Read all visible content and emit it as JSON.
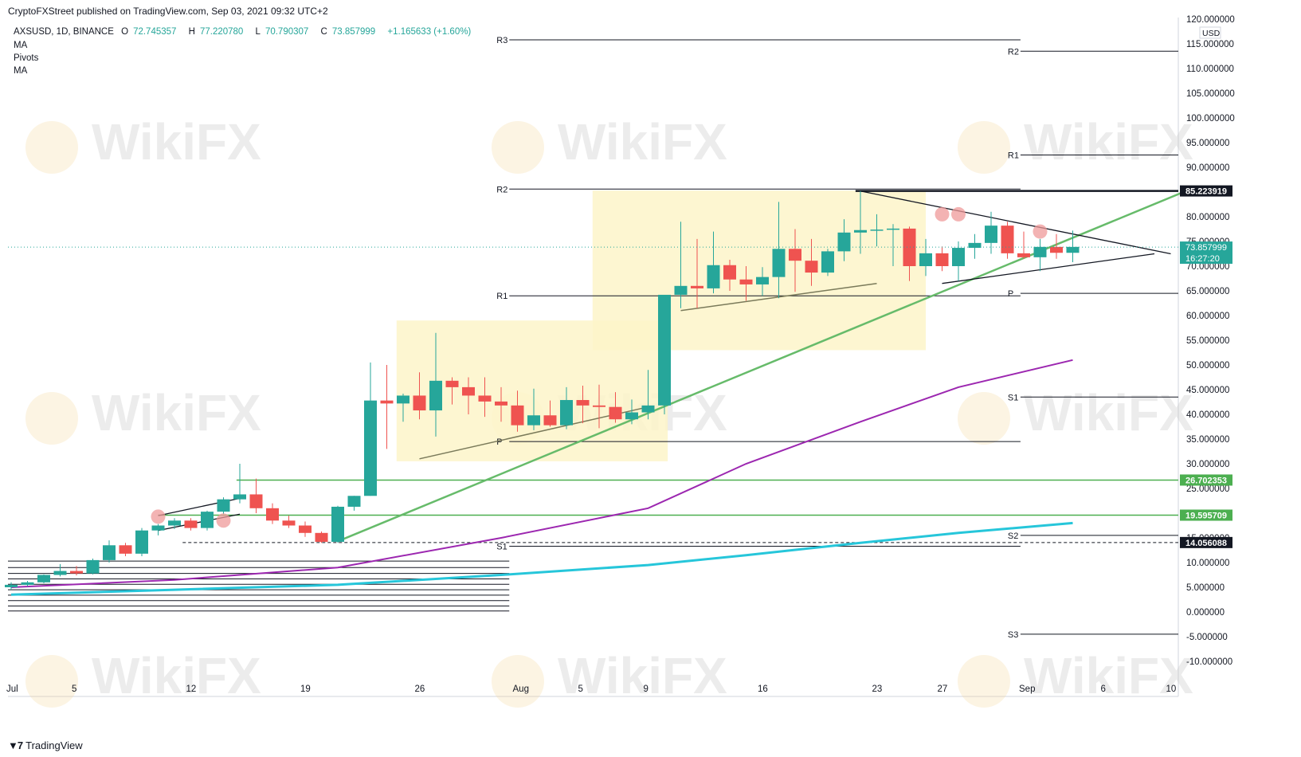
{
  "header": {
    "published": "CryptoFXStreet published on TradingView.com, Sep 03, 2021 09:32 UTC+2",
    "symbol": "AXSUSD, 1D, BINANCE",
    "open_label": "O",
    "open": "72.745357",
    "high_label": "H",
    "high": "77.220780",
    "low_label": "L",
    "low": "70.790307",
    "close_label": "C",
    "close": "73.857999",
    "change": "+1.165633 (+1.60%)",
    "indicators": [
      "MA",
      "Pivots",
      "MA"
    ]
  },
  "footer": {
    "brand": "TradingView"
  },
  "watermark": "WikiFX",
  "colors": {
    "up": "#26a69a",
    "down": "#ef5350",
    "ma_slow": "#9c27b0",
    "ma_long": "#26c6da",
    "trend": "#66bb6a",
    "highlight": "#fdf5c9"
  },
  "chart_data": {
    "type": "candlestick",
    "title": "AXSUSD, 1D, BINANCE",
    "currency": "USD",
    "ylim": [
      -10,
      120
    ],
    "y_ticks": [
      "120.000000",
      "115.000000",
      "110.000000",
      "105.000000",
      "100.000000",
      "95.000000",
      "90.000000",
      "85.000000",
      "80.000000",
      "75.000000",
      "70.000000",
      "65.000000",
      "60.000000",
      "55.000000",
      "50.000000",
      "45.000000",
      "40.000000",
      "35.000000",
      "30.000000",
      "25.000000",
      "20.000000",
      "15.000000",
      "10.000000",
      "5.000000",
      "0.000000",
      "-5.000000",
      "-10.000000"
    ],
    "x_ticks": [
      {
        "label": "Jul",
        "day": 0
      },
      {
        "label": "5",
        "day": 4
      },
      {
        "label": "12",
        "day": 11
      },
      {
        "label": "19",
        "day": 18
      },
      {
        "label": "26",
        "day": 25
      },
      {
        "label": "Aug",
        "day": 31
      },
      {
        "label": "5",
        "day": 35
      },
      {
        "label": "9",
        "day": 39
      },
      {
        "label": "16",
        "day": 46
      },
      {
        "label": "23",
        "day": 53
      },
      {
        "label": "27",
        "day": 57
      },
      {
        "label": "Sep",
        "day": 62
      },
      {
        "label": "6",
        "day": 67
      },
      {
        "label": "10",
        "day": 71
      }
    ],
    "candles": [
      [
        0,
        5.0,
        6.0,
        4.5,
        5.5
      ],
      [
        1,
        5.5,
        6.3,
        5.2,
        6.0
      ],
      [
        2,
        6.0,
        7.6,
        5.8,
        7.5
      ],
      [
        3,
        7.5,
        9.7,
        7.2,
        8.3
      ],
      [
        4,
        8.3,
        9.3,
        7.4,
        7.8
      ],
      [
        5,
        7.8,
        10.8,
        7.6,
        10.5
      ],
      [
        6,
        10.5,
        14.5,
        10.0,
        13.5
      ],
      [
        7,
        13.5,
        14.0,
        11.3,
        11.8
      ],
      [
        8,
        11.8,
        17.0,
        11.3,
        16.5
      ],
      [
        9,
        16.5,
        17.8,
        15.5,
        17.5
      ],
      [
        10,
        17.5,
        19.0,
        16.8,
        18.5
      ],
      [
        11,
        18.5,
        19.0,
        16.5,
        17.0
      ],
      [
        12,
        17.0,
        20.5,
        16.5,
        20.3
      ],
      [
        13,
        20.3,
        23.2,
        19.8,
        22.8
      ],
      [
        14,
        22.8,
        30.0,
        22.0,
        23.8
      ],
      [
        15,
        23.8,
        27.0,
        20.0,
        21.0
      ],
      [
        16,
        21.0,
        22.0,
        17.8,
        18.5
      ],
      [
        17,
        18.5,
        19.5,
        17.0,
        17.5
      ],
      [
        18,
        17.5,
        18.3,
        15.2,
        16.0
      ],
      [
        19,
        16.0,
        16.3,
        14.0,
        14.2
      ],
      [
        20,
        14.2,
        21.5,
        14.0,
        21.3
      ],
      [
        21,
        21.3,
        23.5,
        20.5,
        23.5
      ],
      [
        22,
        23.5,
        50.5,
        23.5,
        42.8
      ],
      [
        23,
        42.8,
        50.0,
        33.0,
        42.2
      ],
      [
        24,
        42.2,
        44.2,
        38.5,
        43.8
      ],
      [
        25,
        43.8,
        48.5,
        39.0,
        40.8
      ],
      [
        26,
        40.8,
        56.5,
        35.5,
        46.8
      ],
      [
        27,
        46.8,
        47.5,
        42.0,
        45.5
      ],
      [
        28,
        45.5,
        47.5,
        40.0,
        43.8
      ],
      [
        29,
        43.8,
        47.5,
        39.5,
        42.6
      ],
      [
        30,
        42.6,
        45.5,
        38.5,
        41.8
      ],
      [
        31,
        41.8,
        44.8,
        36.5,
        37.8
      ],
      [
        32,
        37.8,
        45.2,
        36.8,
        39.8
      ],
      [
        33,
        39.8,
        42.8,
        37.5,
        37.8
      ],
      [
        34,
        37.8,
        45.5,
        37.0,
        42.9
      ],
      [
        35,
        42.9,
        45.8,
        38.2,
        41.8
      ],
      [
        36,
        41.8,
        46.0,
        37.2,
        41.5
      ],
      [
        37,
        41.5,
        44.5,
        38.3,
        39.0
      ],
      [
        38,
        39.0,
        43.0,
        38.0,
        40.4
      ],
      [
        39,
        40.4,
        49.0,
        39.0,
        41.8
      ],
      [
        40,
        41.8,
        64.2,
        40.0,
        64.2
      ],
      [
        41,
        64.2,
        79.0,
        61.5,
        66.0
      ],
      [
        42,
        66.0,
        75.5,
        61.5,
        65.5
      ],
      [
        43,
        65.5,
        77.0,
        64.5,
        70.2
      ],
      [
        44,
        70.2,
        71.3,
        65.0,
        67.3
      ],
      [
        45,
        67.3,
        70.0,
        63.0,
        66.3
      ],
      [
        46,
        66.3,
        69.8,
        64.0,
        67.8
      ],
      [
        47,
        67.8,
        83.0,
        63.5,
        73.5
      ],
      [
        48,
        73.5,
        77.5,
        64.8,
        71.1
      ],
      [
        49,
        71.1,
        75.5,
        66.0,
        68.7
      ],
      [
        50,
        68.7,
        73.5,
        68.0,
        73.0
      ],
      [
        51,
        73.0,
        79.5,
        71.0,
        76.8
      ],
      [
        52,
        76.8,
        85.2,
        72.5,
        77.3
      ],
      [
        53,
        77.3,
        80.5,
        74.0,
        77.4
      ],
      [
        54,
        77.4,
        78.5,
        70.0,
        77.6
      ],
      [
        55,
        77.6,
        78.0,
        67.0,
        70.0
      ],
      [
        56,
        70.0,
        75.5,
        68.0,
        72.6
      ],
      [
        57,
        72.6,
        74.0,
        69.0,
        70.0
      ],
      [
        58,
        70.0,
        75.0,
        67.0,
        73.7
      ],
      [
        59,
        73.7,
        76.5,
        71.5,
        74.7
      ],
      [
        60,
        74.7,
        81.0,
        72.5,
        78.2
      ],
      [
        61,
        78.2,
        79.0,
        71.5,
        72.6
      ],
      [
        62,
        72.6,
        77.0,
        71.5,
        71.8
      ],
      [
        63,
        71.8,
        75.5,
        69.0,
        73.9
      ],
      [
        64,
        73.9,
        76.5,
        71.5,
        72.7
      ],
      [
        65,
        72.7,
        77.2,
        70.8,
        73.9
      ]
    ],
    "pivot_levels_july": [
      {
        "label": "R3",
        "value": 115.8
      },
      {
        "label": "R2",
        "value": 85.6
      },
      {
        "label": "R1",
        "value": 64.0
      },
      {
        "label": "P",
        "value": 34.5
      },
      {
        "label": "S1",
        "value": 13.3
      }
    ],
    "pivot_levels_august": [
      {
        "label": "R2",
        "value": 113.5
      },
      {
        "label": "R1",
        "value": 92.5
      },
      {
        "label": "P",
        "value": 64.5
      },
      {
        "label": "S1",
        "value": 43.5
      },
      {
        "label": "S2",
        "value": 15.5
      },
      {
        "label": "S3",
        "value": -4.5
      }
    ],
    "june_levels": [
      10.3,
      9.0,
      7.8,
      6.7,
      5.6,
      4.5,
      3.4,
      2.3,
      1.2,
      0.2
    ],
    "horizontal_levels": [
      {
        "value": 85.223919,
        "label": "85.223919",
        "style": "black"
      },
      {
        "value": 26.702353,
        "label": "26.702353",
        "style": "green"
      },
      {
        "value": 19.595709,
        "label": "19.595709",
        "style": "green"
      },
      {
        "value": 14.056088,
        "label": "14.056088",
        "style": "dashed"
      }
    ],
    "last_price": {
      "value": 73.857999,
      "label": "73.857999",
      "countdown": "16:27:20"
    },
    "ma_purple": [
      [
        0,
        5.0
      ],
      [
        10,
        6.5
      ],
      [
        20,
        9.0
      ],
      [
        30,
        15.0
      ],
      [
        39,
        21.0
      ],
      [
        45,
        30.0
      ],
      [
        52,
        38.5
      ],
      [
        58,
        45.5
      ],
      [
        65,
        51.0
      ]
    ],
    "ma_cyan": [
      [
        0,
        3.5
      ],
      [
        10,
        4.5
      ],
      [
        20,
        5.5
      ],
      [
        30,
        7.5
      ],
      [
        39,
        9.5
      ],
      [
        45,
        11.5
      ],
      [
        52,
        14.0
      ],
      [
        58,
        16.0
      ],
      [
        65,
        18.0
      ]
    ],
    "trend_lines": [
      {
        "from": [
          20,
          14.3
        ],
        "to": [
          72,
          85.3
        ],
        "color": "green"
      },
      {
        "from": [
          25,
          31.0
        ],
        "to": [
          39,
          41.5
        ],
        "color": "olive"
      },
      {
        "from": [
          41,
          61.0
        ],
        "to": [
          53,
          66.5
        ],
        "color": "olive"
      },
      {
        "from": [
          52,
          85.2
        ],
        "to": [
          71,
          72.5
        ],
        "color": "black"
      },
      {
        "from": [
          57,
          66.5
        ],
        "to": [
          70,
          72.5
        ],
        "color": "black"
      },
      {
        "from": [
          9,
          19.5
        ],
        "to": [
          14,
          23.0
        ],
        "color": "black"
      },
      {
        "from": [
          9,
          16.5
        ],
        "to": [
          14,
          19.8
        ],
        "color": "black"
      }
    ],
    "highlight_zones": [
      {
        "from": [
          23.6,
          59.2
        ],
        "to": [
          30.0,
          57.0
        ],
        "note": ""
      },
      {
        "from": [
          35.6,
          53.0
        ],
        "to": [
          56.0,
          85.3
        ]
      },
      {
        "from": [
          23.6,
          30.5
        ],
        "to": [
          40.2,
          59.0
        ]
      }
    ],
    "markers": [
      [
        9,
        19.3
      ],
      [
        13,
        18.5
      ],
      [
        57,
        80.5
      ],
      [
        58,
        80.5
      ],
      [
        63,
        77.0
      ]
    ]
  }
}
